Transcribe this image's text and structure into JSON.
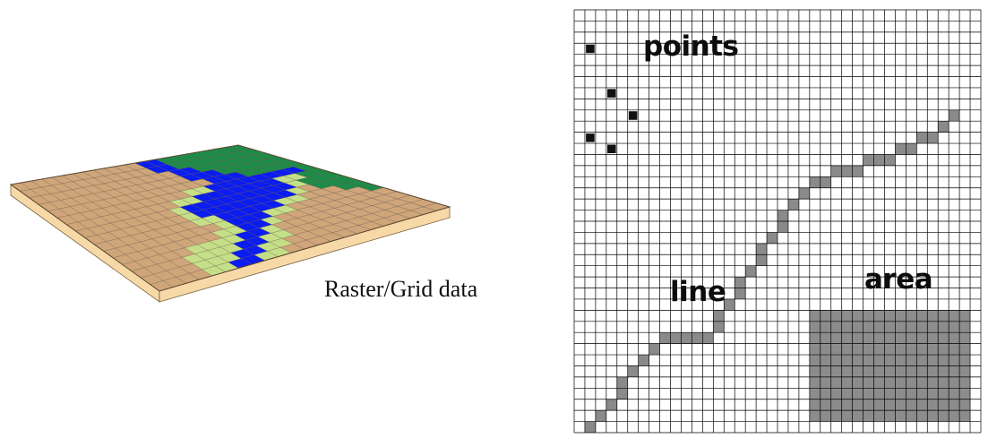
{
  "caption": "Raster/Grid data",
  "grid_labels": {
    "points": "points",
    "line": "line",
    "area": "area"
  },
  "colors": {
    "tan": "#cfa57a",
    "light_green": "#c5df88",
    "dark_green": "#1c8c48",
    "blue": "#0a1cf0",
    "slab_side": "#f7d9a8",
    "grid_line": "#000000",
    "point": "#111111",
    "line_cell": "#8a8a8a",
    "area_cell": "#8c8c8c"
  },
  "raster": {
    "rows": 16,
    "cols": 22,
    "legend": {
      "T": "tan",
      "L": "light_green",
      "G": "dark_green",
      "B": "blue"
    },
    "cells": [
      "TTTTTTTTTTTTBBGGGGGGGG",
      "TTTTTTTTTTTTBBGGGGGGGG",
      "TTTTTTTTTTTTTBBGGGGGGG",
      "TTTTTTTTTTTTTBBBGGGGGG",
      "TTTTTTTTTTTTTTBBBGGGGG",
      "TTTTTTTTTTTLLBBBBBBBBG",
      "TTTTTTTTTLLBBBBBBBLLGG",
      "TTTTTTTTLBBBBBBBBBLGGG",
      "TTTTTTTTLBBBBBBBBLTGGG",
      "TTTTTTTTLLBBBBBLLTTTGG",
      "TTTTTTTTTLBBBLLTTTTTTG",
      "TTTTTTTTLLBBLTTTTTTTTT",
      "TTTTTLLLLBBLTTTTTTTTTT",
      "TTTTLLLLBBLLTTTTTTTTTT",
      "TTTTLLLBBLLTTTTTTTTTTT",
      "TTTTLLBBLLTTTTTTTTTTTT"
    ]
  },
  "vector_grid": {
    "cols": 38,
    "rows": 38,
    "points": [
      [
        2,
        4
      ],
      [
        4,
        8
      ],
      [
        6,
        10
      ],
      [
        2,
        12
      ],
      [
        4,
        13
      ]
    ],
    "line": [
      [
        2,
        38
      ],
      [
        3,
        37
      ],
      [
        4,
        36
      ],
      [
        5,
        35
      ],
      [
        5,
        34
      ],
      [
        6,
        33
      ],
      [
        7,
        32
      ],
      [
        8,
        31
      ],
      [
        9,
        30
      ],
      [
        10,
        30
      ],
      [
        11,
        30
      ],
      [
        12,
        30
      ],
      [
        13,
        30
      ],
      [
        14,
        29
      ],
      [
        14,
        28
      ],
      [
        15,
        27
      ],
      [
        16,
        26
      ],
      [
        16,
        25
      ],
      [
        17,
        24
      ],
      [
        18,
        23
      ],
      [
        18,
        22
      ],
      [
        19,
        21
      ],
      [
        20,
        20
      ],
      [
        20,
        19
      ],
      [
        21,
        18
      ],
      [
        22,
        17
      ],
      [
        23,
        16
      ],
      [
        24,
        16
      ],
      [
        25,
        15
      ],
      [
        26,
        15
      ],
      [
        27,
        15
      ],
      [
        28,
        14
      ],
      [
        29,
        14
      ],
      [
        30,
        14
      ],
      [
        31,
        13
      ],
      [
        32,
        13
      ],
      [
        33,
        12
      ],
      [
        34,
        12
      ],
      [
        35,
        11
      ],
      [
        36,
        10
      ]
    ],
    "area": {
      "col_start": 23,
      "col_end": 37,
      "row_start": 28,
      "row_end": 37
    }
  }
}
